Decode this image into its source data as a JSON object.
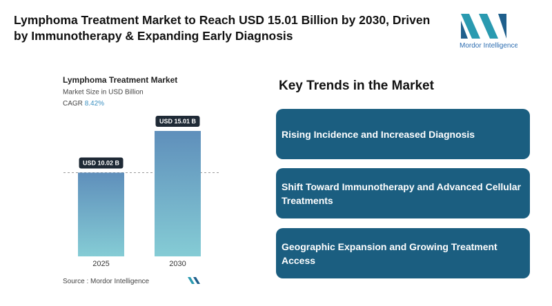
{
  "header": {
    "title": "Lymphoma Treatment Market to Reach USD 15.01 Billion by 2030, Driven by Immunotherapy & Expanding Early Diagnosis",
    "logo_text": "Mordor Intelligence"
  },
  "chart_data": {
    "type": "bar",
    "title": "Lymphoma Treatment Market",
    "subtitle": "Market Size in USD Billion",
    "cagr_label": "CAGR",
    "cagr_value": "8.42%",
    "categories": [
      "2025",
      "2030"
    ],
    "values": [
      10.02,
      15.01
    ],
    "value_labels": [
      "USD 10.02 B",
      "USD 15.01 B"
    ],
    "source_label": "Source :",
    "source": "Mordor Intelligence"
  },
  "trends": {
    "title": "Key Trends in the Market",
    "items": [
      "Rising Incidence and Increased Diagnosis",
      "Shift Toward Immunotherapy and Advanced Cellular Treatments",
      "Geographic Expansion and Growing Treatment Access"
    ]
  }
}
